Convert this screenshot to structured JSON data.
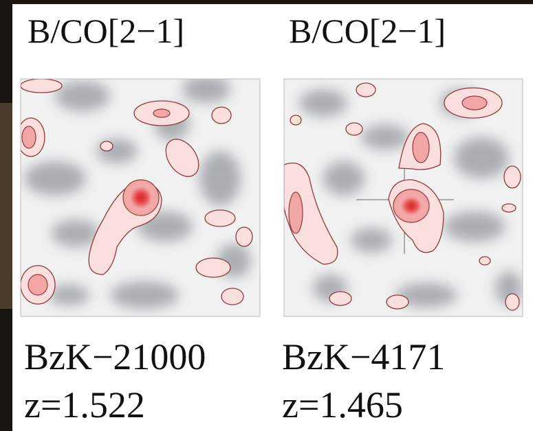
{
  "panels": [
    {
      "title": "B/CO[2−1]",
      "name": "BzK−21000",
      "redshift": "z=1.522"
    },
    {
      "title": "B/CO[2−1]",
      "name": "BzK−4171",
      "redshift": "z=1.465"
    }
  ]
}
